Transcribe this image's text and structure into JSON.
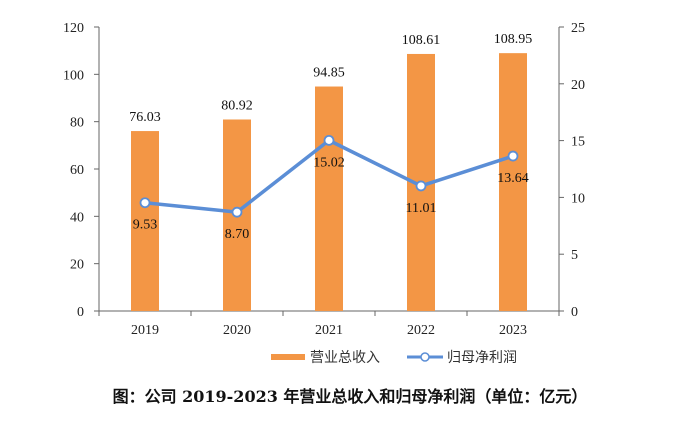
{
  "chart_data": {
    "type": "bar+line",
    "categories": [
      "2019",
      "2020",
      "2021",
      "2022",
      "2023"
    ],
    "series": [
      {
        "name": "营业总收入",
        "type": "bar",
        "axis": "left",
        "values": [
          76.03,
          80.92,
          94.85,
          108.61,
          108.95
        ],
        "labels": [
          "76.03",
          "80.92",
          "94.85",
          "108.61",
          "108.95"
        ],
        "color": "#F39645"
      },
      {
        "name": "归母净利润",
        "type": "line",
        "axis": "right",
        "values": [
          9.53,
          8.7,
          15.02,
          11.01,
          13.64
        ],
        "labels": [
          "9.53",
          "8.70",
          "15.02",
          "11.01",
          "13.64"
        ],
        "color": "#5B8ED6"
      }
    ],
    "left_axis": {
      "ylim": [
        0,
        120
      ],
      "ticks": [
        "0",
        "20",
        "40",
        "60",
        "80",
        "100",
        "120"
      ]
    },
    "right_axis": {
      "ylim": [
        0,
        25
      ],
      "ticks": [
        "0",
        "5",
        "10",
        "15",
        "20",
        "25"
      ]
    },
    "legend": "bottom-center",
    "grid": false,
    "caption": "图：公司 2019-2023 年营业总收入和归母净利润（单位：亿元）"
  }
}
